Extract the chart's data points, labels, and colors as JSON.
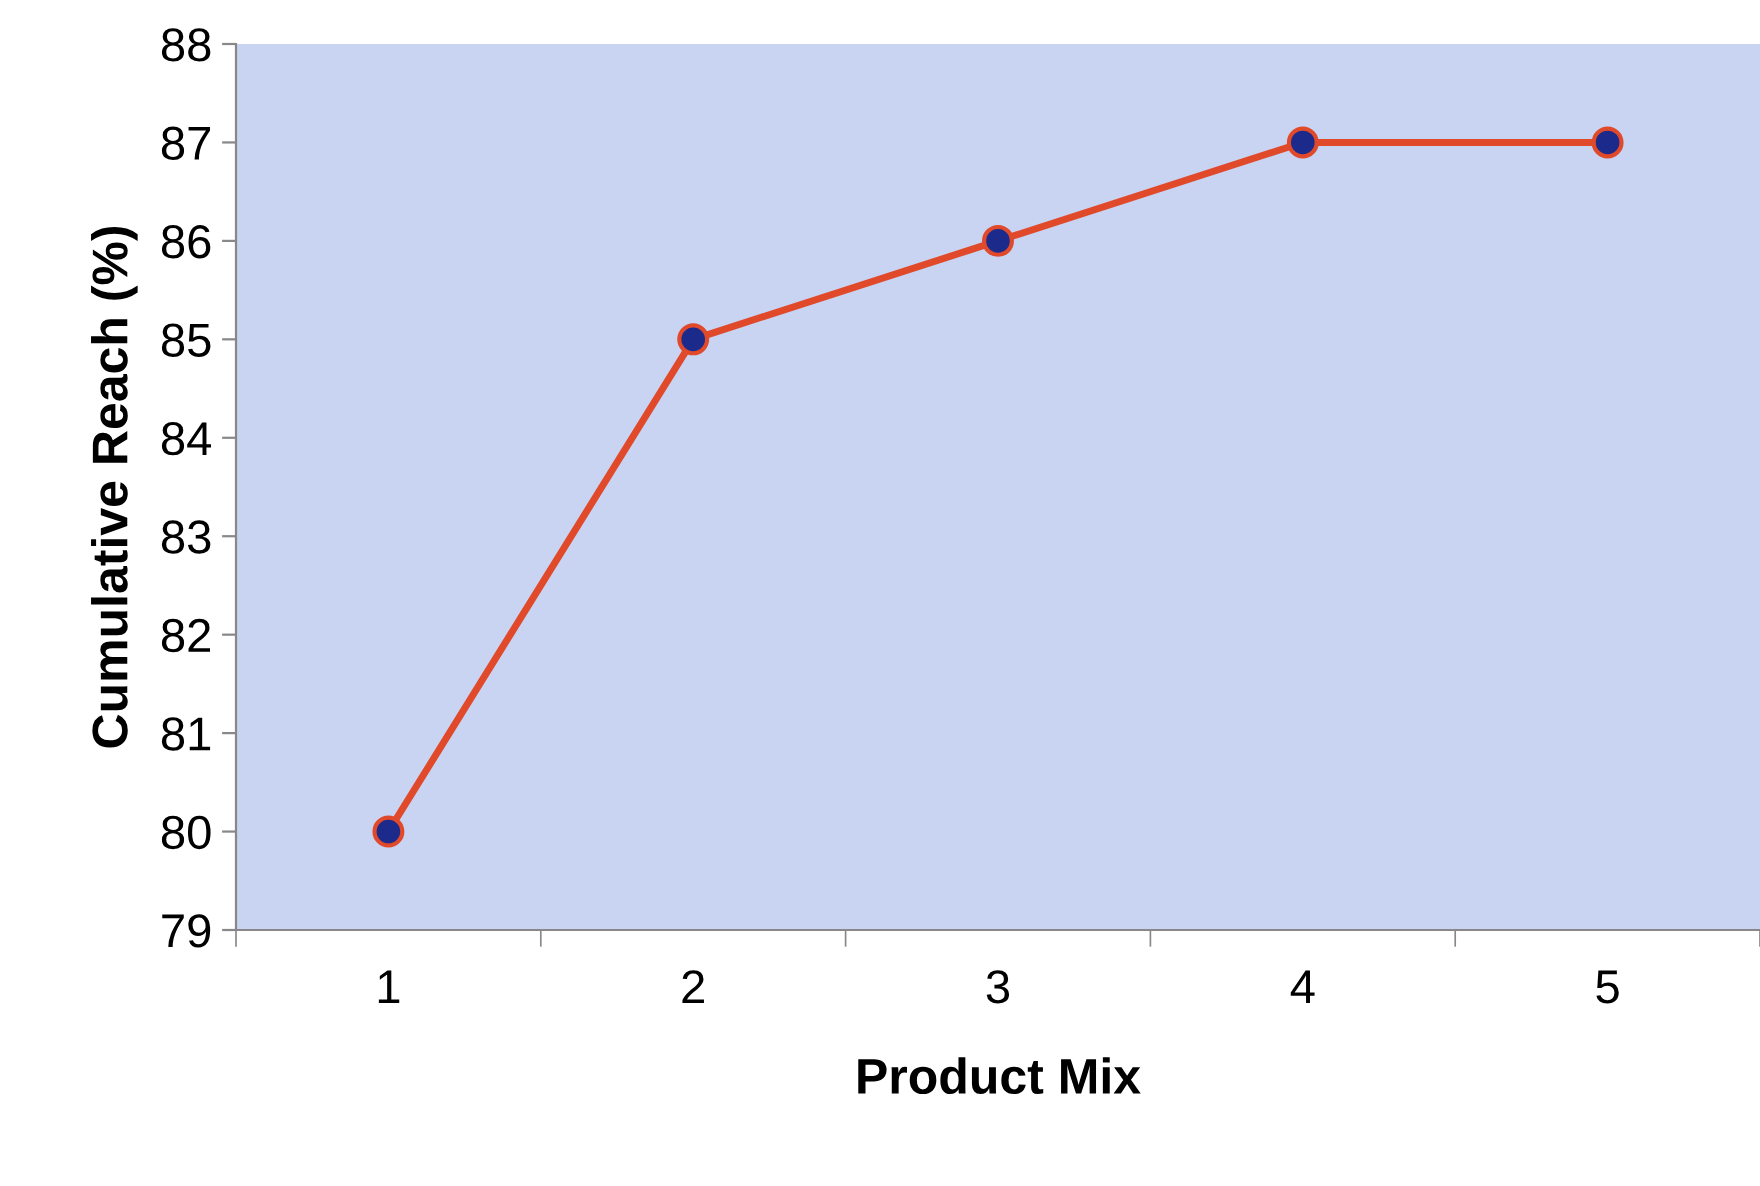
{
  "chart_data": {
    "type": "line",
    "xlabel": "Product Mix",
    "ylabel": "Cumulative Reach (%)",
    "categories": [
      "1",
      "2",
      "3",
      "4",
      "5"
    ],
    "series": [
      {
        "color": "#e04a2a",
        "values": [
          80,
          85,
          86,
          87,
          87
        ]
      }
    ],
    "ylim": [
      79,
      88
    ],
    "yticks": [
      79,
      80,
      81,
      82,
      83,
      84,
      85,
      86,
      87,
      88
    ],
    "grid": false,
    "legend": false,
    "marker": "circle",
    "line_style": "solid"
  }
}
